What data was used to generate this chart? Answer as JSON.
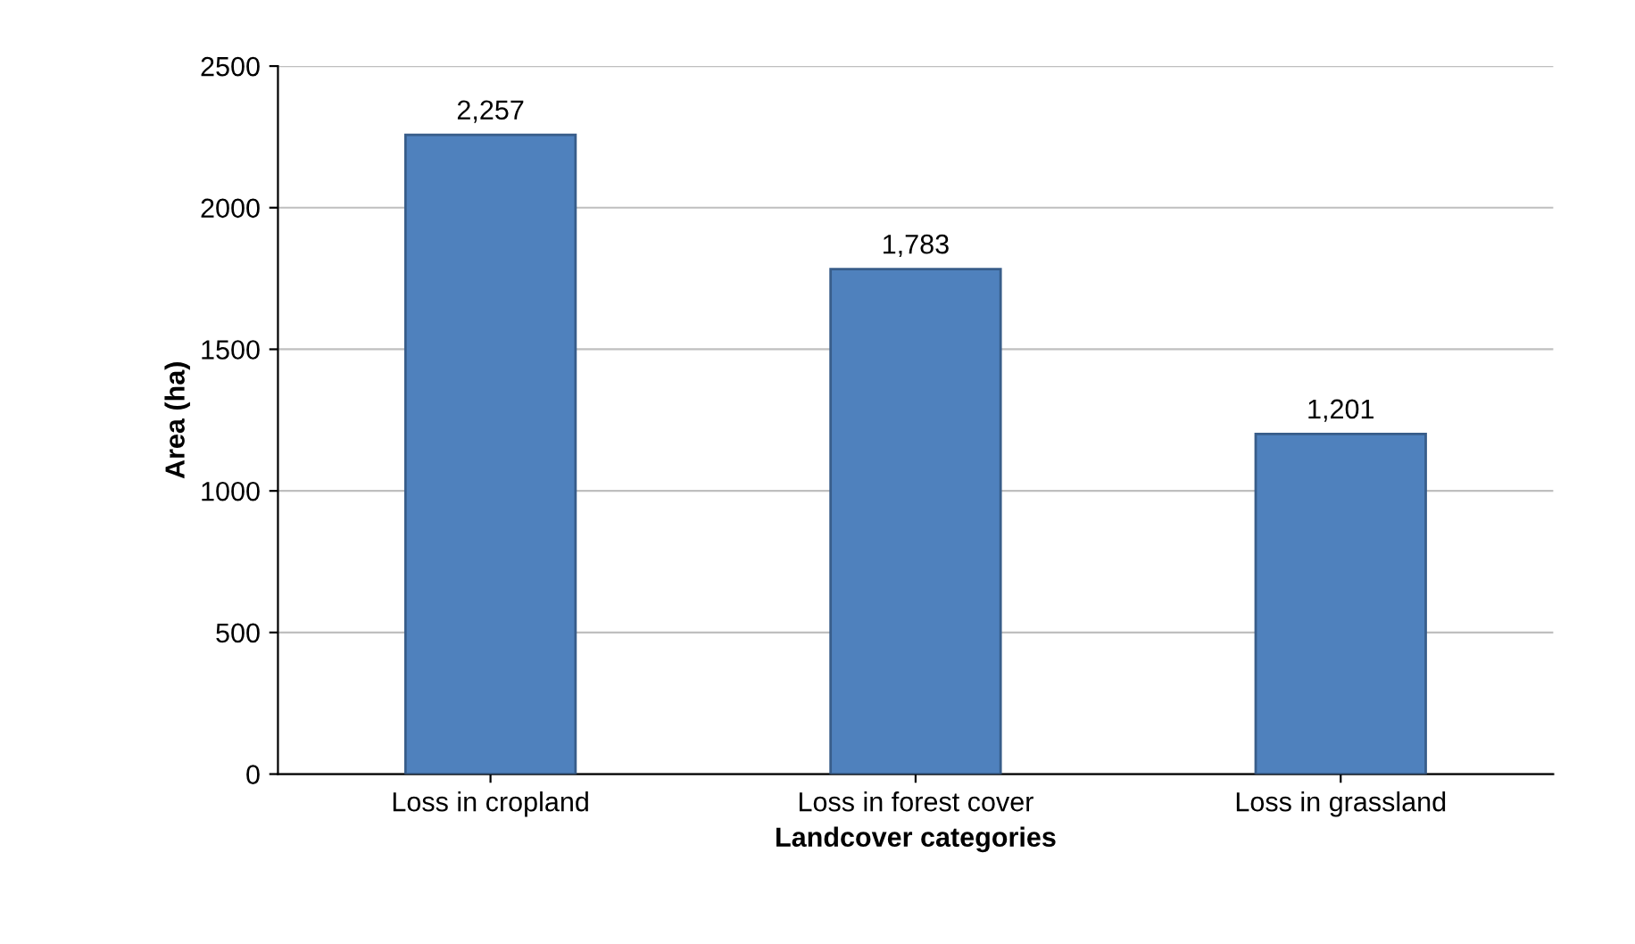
{
  "chart_data": {
    "type": "bar",
    "xlabel": "Landcover categories",
    "ylabel": "Area (ha)",
    "categories": [
      "Loss in cropland",
      "Loss in forest cover",
      "Loss in grassland"
    ],
    "values": [
      2257,
      1783,
      1201
    ],
    "value_labels": [
      "2,257",
      "1,783",
      "1,201"
    ],
    "color": "#4f81bd",
    "ylim": [
      0,
      2500
    ],
    "yticks": [
      0,
      500,
      1000,
      1500,
      2000,
      2500
    ],
    "grid": "y"
  }
}
